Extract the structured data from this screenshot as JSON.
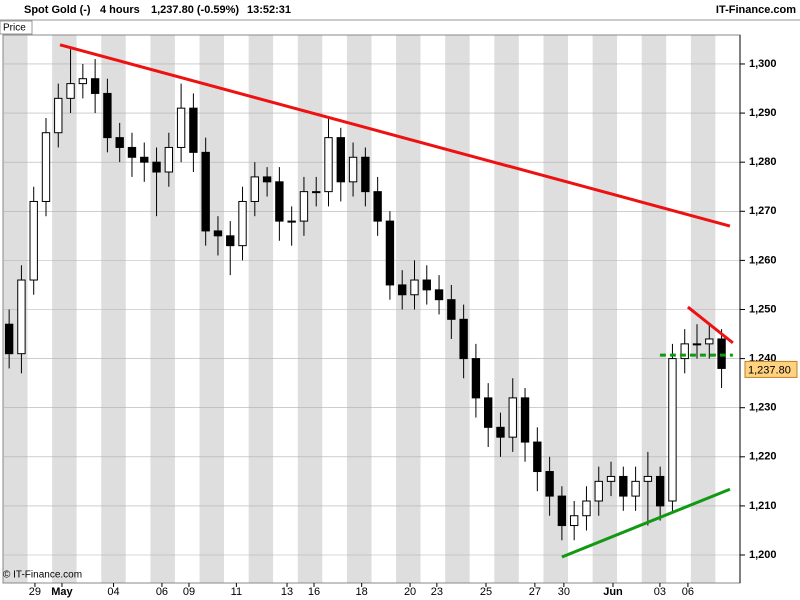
{
  "chart_data": {
    "type": "candlestick",
    "title": "Spot Gold (-)",
    "subtitle": "4 hours",
    "last_price_text": "1,237.80 (-0.59%)",
    "time": "13:52:31",
    "brand": "IT-Finance.com",
    "panel_label": "Price",
    "copyright": "© IT-Finance.com",
    "color_up": "#ffffff",
    "color_down": "#000000",
    "grid": true,
    "xlim": [
      0,
      30
    ],
    "ylim": [
      1194.3,
      1305.9
    ],
    "yticks": [
      {
        "value": 1200,
        "label": "1,200"
      },
      {
        "value": 1210,
        "label": "1,210"
      },
      {
        "value": 1220,
        "label": "1,220"
      },
      {
        "value": 1230,
        "label": "1,230"
      },
      {
        "value": 1240,
        "label": "1,240"
      },
      {
        "value": 1250,
        "label": "1,250"
      },
      {
        "value": 1260,
        "label": "1,260"
      },
      {
        "value": 1270,
        "label": "1,270"
      },
      {
        "value": 1280,
        "label": "1,280"
      },
      {
        "value": 1290,
        "label": "1,290"
      },
      {
        "value": 1300,
        "label": "1,300"
      }
    ],
    "xticks": [
      {
        "value": 1.3,
        "label": "29"
      },
      {
        "value": 2.4,
        "label": "May"
      },
      {
        "value": 4.5,
        "label": "04"
      },
      {
        "value": 6.47,
        "label": "06"
      },
      {
        "value": 7.57,
        "label": "09"
      },
      {
        "value": 9.5,
        "label": "11"
      },
      {
        "value": 11.56,
        "label": "13"
      },
      {
        "value": 12.66,
        "label": "16"
      },
      {
        "value": 14.6,
        "label": "18"
      },
      {
        "value": 16.57,
        "label": "20"
      },
      {
        "value": 17.66,
        "label": "23"
      },
      {
        "value": 19.66,
        "label": "25"
      },
      {
        "value": 21.65,
        "label": "27"
      },
      {
        "value": 22.83,
        "label": "30"
      },
      {
        "value": 24.83,
        "label": "Jun"
      },
      {
        "value": 26.74,
        "label": "03"
      },
      {
        "value": 27.88,
        "label": "06"
      }
    ],
    "x": [
      0.25,
      0.75,
      1.25,
      1.75,
      2.25,
      2.75,
      3.25,
      3.75,
      4.25,
      4.75,
      5.25,
      5.75,
      6.25,
      6.75,
      7.25,
      7.75,
      8.25,
      8.75,
      9.25,
      9.75,
      10.25,
      10.75,
      11.25,
      11.75,
      12.25,
      12.75,
      13.25,
      13.75,
      14.25,
      14.75,
      15.25,
      15.75,
      16.25,
      16.75,
      17.25,
      17.75,
      18.25,
      18.75,
      19.25,
      19.75,
      20.25,
      20.75,
      21.25,
      21.75,
      22.25,
      22.75,
      23.25,
      23.75,
      24.25,
      24.75,
      25.25,
      25.75,
      26.25,
      26.75,
      27.25,
      27.75,
      28.25,
      28.75,
      29.25
    ],
    "open": [
      1247,
      1241,
      1256,
      1272,
      1286,
      1293,
      1296,
      1297,
      1294,
      1285,
      1283,
      1281,
      1280,
      1278,
      1283,
      1291,
      1282,
      1266,
      1265,
      1263,
      1272,
      1277,
      1276,
      1268,
      1268,
      1274,
      1274,
      1285,
      1276,
      1281,
      1274,
      1268,
      1255,
      1253,
      1256,
      1254,
      1252,
      1248,
      1240,
      1232,
      1226,
      1224,
      1232,
      1223,
      1217,
      1212,
      1206,
      1208,
      1211,
      1215,
      1216,
      1212,
      1215,
      1216,
      1211,
      1240,
      1243,
      1243,
      1244
    ],
    "high": [
      1250,
      1259,
      1275,
      1289,
      1296,
      1303,
      1300,
      1301,
      1297,
      1288,
      1286,
      1284,
      1283,
      1286,
      1296,
      1294,
      1285,
      1269,
      1268,
      1275,
      1280,
      1279,
      1279,
      1271,
      1277,
      1277,
      1289,
      1287,
      1284,
      1283,
      1277,
      1270,
      1258,
      1260,
      1259,
      1257,
      1255,
      1251,
      1243,
      1235,
      1229,
      1236,
      1234,
      1226,
      1220,
      1214,
      1211,
      1214,
      1218,
      1219,
      1218,
      1218,
      1221,
      1218,
      1243,
      1246,
      1247,
      1247,
      1246
    ],
    "low": [
      1238,
      1237,
      1253,
      1269,
      1283,
      1290,
      1293,
      1290,
      1282,
      1280,
      1277,
      1276,
      1269,
      1275,
      1280,
      1278,
      1263,
      1261,
      1257,
      1260,
      1269,
      1273,
      1264,
      1263,
      1265,
      1271,
      1271,
      1272,
      1273,
      1271,
      1265,
      1252,
      1250,
      1250,
      1251,
      1249,
      1244,
      1236,
      1228,
      1222,
      1220,
      1221,
      1219,
      1213,
      1208,
      1203,
      1203,
      1205,
      1208,
      1212,
      1209,
      1209,
      1206,
      1207,
      1209,
      1237,
      1240,
      1240,
      1234
    ],
    "close": [
      1241,
      1256,
      1272,
      1286,
      1293,
      1296,
      1297,
      1294,
      1285,
      1283,
      1281,
      1280,
      1278,
      1283,
      1291,
      1282,
      1266,
      1265,
      1263,
      1272,
      1277,
      1276,
      1268,
      1268,
      1274,
      1274,
      1285,
      1276,
      1281,
      1274,
      1268,
      1255,
      1253,
      1256,
      1254,
      1252,
      1248,
      1240,
      1232,
      1226,
      1224,
      1232,
      1223,
      1217,
      1212,
      1206,
      1208,
      1211,
      1215,
      1216,
      1212,
      1215,
      1216,
      1210,
      1240,
      1243,
      1243,
      1244,
      1238
    ],
    "last_price": {
      "value": 1237.8,
      "label": "1,237.80",
      "color": "#ffd27f"
    },
    "trendlines": [
      {
        "x": [
          2.32,
          29.59
        ],
        "y": [
          1303.9,
          1267.0
        ],
        "color": "#ee1111",
        "dashed": false
      },
      {
        "x": [
          27.88,
          29.71
        ],
        "y": [
          1250.5,
          1243.2
        ],
        "color": "#ee1111",
        "dashed": false
      },
      {
        "x": [
          22.75,
          29.59
        ],
        "y": [
          1199.6,
          1213.4
        ],
        "color": "#119911",
        "dashed": false
      },
      {
        "x": [
          26.74,
          29.71
        ],
        "y": [
          1240.7,
          1240.7
        ],
        "color": "#119911",
        "dashed": true
      }
    ]
  }
}
